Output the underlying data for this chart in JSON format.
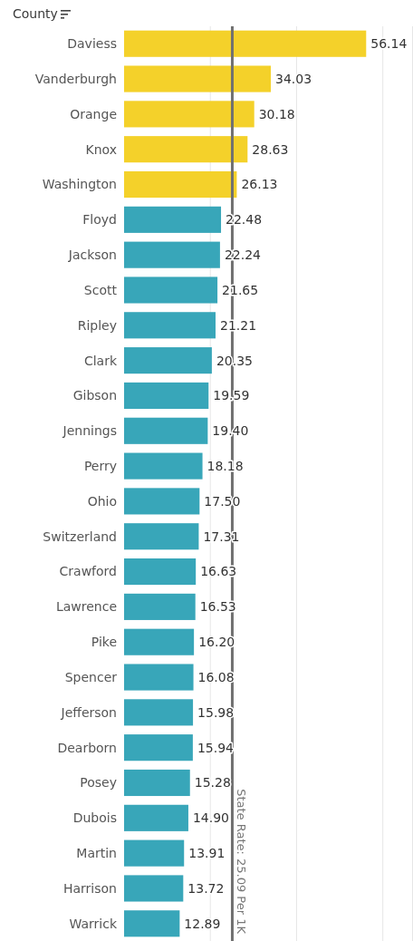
{
  "chart_data": {
    "type": "bar",
    "orientation": "horizontal",
    "title": "County",
    "categories": [
      "Daviess",
      "Vanderburgh",
      "Orange",
      "Knox",
      "Washington",
      "Floyd",
      "Jackson",
      "Scott",
      "Ripley",
      "Clark",
      "Gibson",
      "Jennings",
      "Perry",
      "Ohio",
      "Switzerland",
      "Crawford",
      "Lawrence",
      "Pike",
      "Spencer",
      "Jefferson",
      "Dearborn",
      "Posey",
      "Dubois",
      "Martin",
      "Harrison",
      "Warrick"
    ],
    "values": [
      56.14,
      34.03,
      30.18,
      28.63,
      26.13,
      22.48,
      22.24,
      21.65,
      21.21,
      20.35,
      19.59,
      19.4,
      18.18,
      17.5,
      17.31,
      16.63,
      16.53,
      16.2,
      16.08,
      15.98,
      15.94,
      15.28,
      14.9,
      13.91,
      13.72,
      12.89
    ],
    "value_labels": [
      "56.14",
      "34.03",
      "30.18",
      "28.63",
      "26.13",
      "22.48",
      "22.24",
      "21.65",
      "21.21",
      "20.35",
      "19.59",
      "19.40",
      "18.18",
      "17.50",
      "17.31",
      "16.63",
      "16.53",
      "16.20",
      "16.08",
      "15.98",
      "15.94",
      "15.28",
      "14.90",
      "13.91",
      "13.72",
      "12.89"
    ],
    "colors": [
      "#f4d12a",
      "#f4d12a",
      "#f4d12a",
      "#f4d12a",
      "#f4d12a",
      "#38a6b9",
      "#38a6b9",
      "#38a6b9",
      "#38a6b9",
      "#38a6b9",
      "#38a6b9",
      "#38a6b9",
      "#38a6b9",
      "#38a6b9",
      "#38a6b9",
      "#38a6b9",
      "#38a6b9",
      "#38a6b9",
      "#38a6b9",
      "#38a6b9",
      "#38a6b9",
      "#38a6b9",
      "#38a6b9",
      "#38a6b9",
      "#38a6b9",
      "#38a6b9"
    ],
    "xlim": [
      0,
      67
    ],
    "xticks": [
      {
        "value": 20,
        "label": null
      },
      {
        "value": 40,
        "label": null
      },
      {
        "value": 60,
        "label": null
      }
    ],
    "grid": "x",
    "tick_labels": "y",
    "ref_lines": [
      {
        "axis": "x",
        "value": 25.09,
        "label": "State Rate: 25.09 Per 1K",
        "color": "#707070"
      }
    ]
  }
}
